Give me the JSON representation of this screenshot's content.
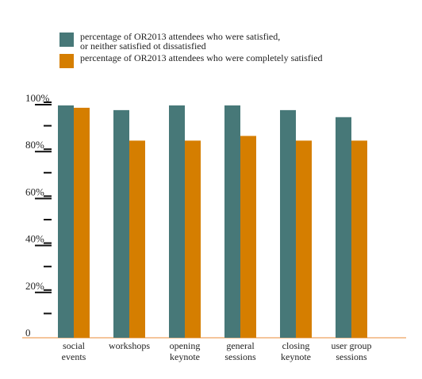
{
  "colors": {
    "series1": "#477878",
    "series2": "#d57e00",
    "axis": "#f0b27a",
    "tick": "#111111"
  },
  "legend": {
    "series1_line1": "percentage of OR2013 attendees who were satisfied,",
    "series1_line2": "or neither satisfied ot dissatisfied",
    "series2": "percentage of OR2013 attendees who were completely satisfied"
  },
  "chart_data": {
    "type": "bar",
    "categories": [
      [
        "social",
        "events"
      ],
      [
        "workshops"
      ],
      [
        "opening",
        "keynote"
      ],
      [
        "general",
        "sessions"
      ],
      [
        "closing",
        "keynote"
      ],
      [
        "user group",
        "sessions"
      ]
    ],
    "series": [
      {
        "name": "percentage of OR2013 attendees who were satisfied, or neither satisfied ot dissatisfied",
        "values": [
          99,
          97,
          99,
          99,
          97,
          94
        ]
      },
      {
        "name": "percentage of OR2013 attendees who were completely satisfied",
        "values": [
          98,
          84,
          84,
          86,
          84,
          84
        ]
      }
    ],
    "yticks": [
      "0",
      "20%",
      "40%",
      "60%",
      "80%",
      "100%"
    ],
    "ylim": [
      0,
      105
    ],
    "legend_position": "top-left",
    "grid": false
  }
}
